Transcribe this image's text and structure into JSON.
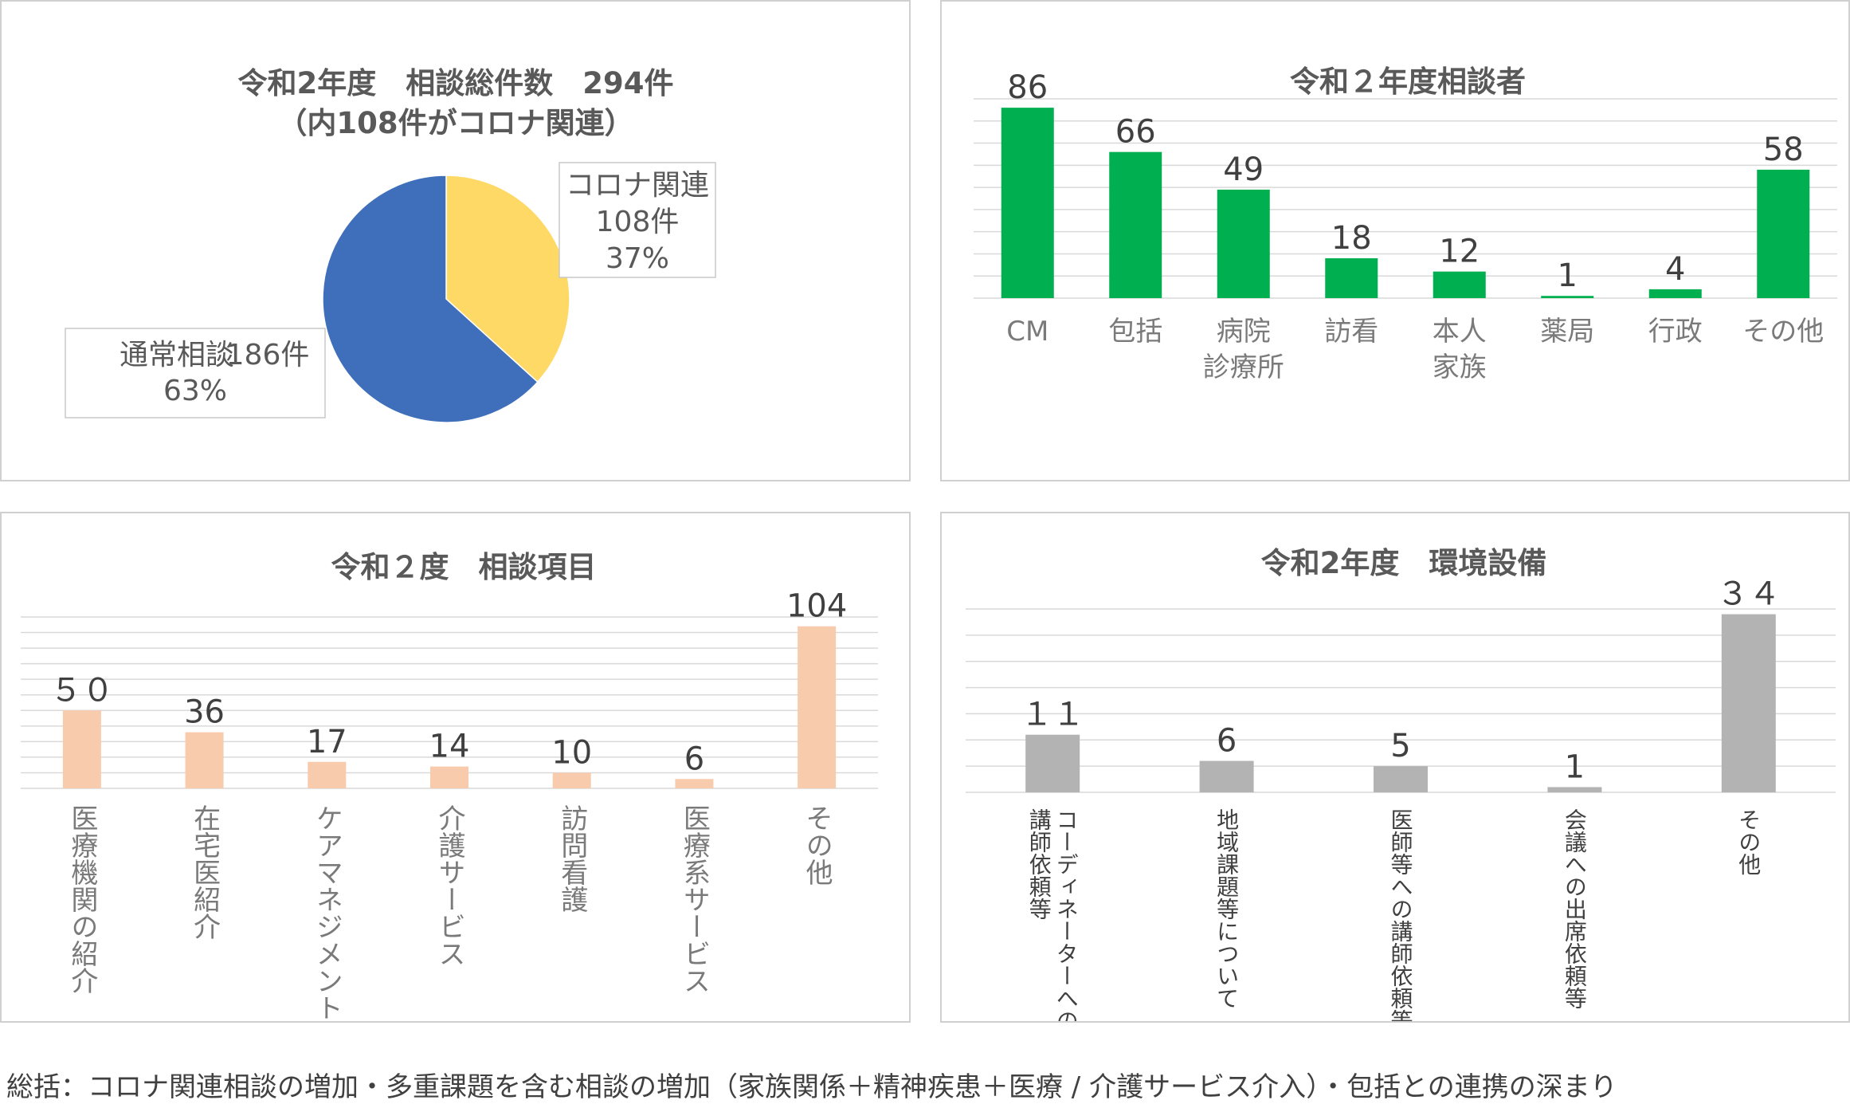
{
  "chart_data": [
    {
      "type": "pie",
      "title": "令和2年度　相談総件数　294件",
      "subtitle": "（内108件がコロナ関連）",
      "slices": [
        {
          "name": "コロナ関連",
          "count_label": "108件",
          "percent_label": "37%",
          "value": 108,
          "color": "#ffd966"
        },
        {
          "name": "通常相談",
          "count_label": "186件",
          "percent_label": "63%",
          "value": 186,
          "color": "#3f6fba"
        }
      ]
    },
    {
      "type": "bar",
      "title": "令和２年度相談者",
      "categories": [
        "CM",
        "包括",
        "病院\n診療所",
        "訪看",
        "本人\n家族",
        "薬局",
        "行政",
        "その他"
      ],
      "values": [
        86,
        66,
        49,
        18,
        12,
        1,
        4,
        58
      ],
      "ylim": [
        0,
        90
      ],
      "color": "#00b050",
      "grid": true
    },
    {
      "type": "bar",
      "title": "令和２度　相談項目",
      "categories": [
        "医療機関の紹介",
        "在宅医紹介",
        "ケアマネジメント",
        "介護サービス",
        "訪問看護",
        "医療系サービス",
        "その他"
      ],
      "values": [
        50,
        36,
        17,
        14,
        10,
        6,
        104
      ],
      "value_labels": [
        "５０",
        "36",
        "17",
        "14",
        "10",
        "6",
        "104"
      ],
      "ylim": [
        0,
        110
      ],
      "color": "#f8cbad",
      "grid": true
    },
    {
      "type": "bar",
      "title": "令和2年度　環境設備",
      "categories": [
        "コーディネーターへの\n講師依頼等",
        "地域課題等について",
        "医師等への講師依頼等",
        "会議への出席依頼等",
        "その他"
      ],
      "values": [
        11,
        6,
        5,
        1,
        34
      ],
      "value_labels": [
        "１１",
        "6",
        "5",
        "1",
        "３４"
      ],
      "ylim": [
        0,
        35
      ],
      "color": "#b3b3b3",
      "grid": true
    }
  ],
  "footer": "総括：コロナ関連相談の増加・多重課題を含む相談の増加（家族関係＋精神疾患＋医療 / 介護サービス介入）・包括との連携の深まり"
}
